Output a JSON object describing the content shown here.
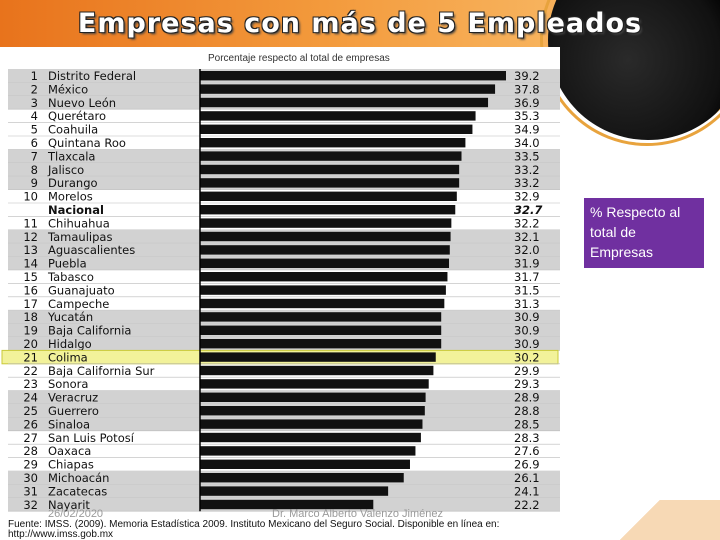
{
  "slide": {
    "title": "Empresas con más de 5  Empleados",
    "callout": "% Respecto al total de Empresas",
    "footer_date": "26/02/2020",
    "footer_author": "Dr. Marco Alberto Valenzo Jiménez",
    "source": "Fuente: IMSS. (2009). Memoria Estadística 2009. Instituto Mexicano del Seguro Social. Disponible en línea en: http://www.imss.gob.mx"
  },
  "colors": {
    "header": "#f39a3c",
    "bar": "#111111",
    "row_shade": "#d2d2d2",
    "highlight": "#f2f29a",
    "callout": "#7030a0"
  },
  "chart_data": {
    "type": "bar",
    "orientation": "horizontal",
    "title": "Porcentaje respecto al total de empresas",
    "xlim": [
      0,
      39.2
    ],
    "rows": [
      {
        "rank": "1",
        "name": "Distrito Federal",
        "value": 39.2
      },
      {
        "rank": "2",
        "name": "México",
        "value": 37.8
      },
      {
        "rank": "3",
        "name": "Nuevo León",
        "value": 36.9
      },
      {
        "rank": "4",
        "name": "Querétaro",
        "value": 35.3
      },
      {
        "rank": "5",
        "name": "Coahuila",
        "value": 34.9
      },
      {
        "rank": "6",
        "name": "Quintana Roo",
        "value": 34.0
      },
      {
        "rank": "7",
        "name": "Tlaxcala",
        "value": 33.5
      },
      {
        "rank": "8",
        "name": "Jalisco",
        "value": 33.2
      },
      {
        "rank": "9",
        "name": "Durango",
        "value": 33.2
      },
      {
        "rank": "10",
        "name": "Morelos",
        "value": 32.9
      },
      {
        "rank": "",
        "name": "Nacional",
        "value": 32.7,
        "national": true
      },
      {
        "rank": "11",
        "name": "Chihuahua",
        "value": 32.2
      },
      {
        "rank": "12",
        "name": "Tamaulipas",
        "value": 32.1
      },
      {
        "rank": "13",
        "name": "Aguascalientes",
        "value": 32.0
      },
      {
        "rank": "14",
        "name": "Puebla",
        "value": 31.9
      },
      {
        "rank": "15",
        "name": "Tabasco",
        "value": 31.7
      },
      {
        "rank": "16",
        "name": "Guanajuato",
        "value": 31.5
      },
      {
        "rank": "17",
        "name": "Campeche",
        "value": 31.3
      },
      {
        "rank": "18",
        "name": "Yucatán",
        "value": 30.9
      },
      {
        "rank": "19",
        "name": "Baja California",
        "value": 30.9
      },
      {
        "rank": "20",
        "name": "Hidalgo",
        "value": 30.9
      },
      {
        "rank": "21",
        "name": "Colima",
        "value": 30.2,
        "highlight": true
      },
      {
        "rank": "22",
        "name": "Baja California Sur",
        "value": 29.9
      },
      {
        "rank": "23",
        "name": "Sonora",
        "value": 29.3
      },
      {
        "rank": "24",
        "name": "Veracruz",
        "value": 28.9
      },
      {
        "rank": "25",
        "name": "Guerrero",
        "value": 28.8
      },
      {
        "rank": "26",
        "name": "Sinaloa",
        "value": 28.5
      },
      {
        "rank": "27",
        "name": "San Luis Potosí",
        "value": 28.3
      },
      {
        "rank": "28",
        "name": "Oaxaca",
        "value": 27.6
      },
      {
        "rank": "29",
        "name": "Chiapas",
        "value": 26.9
      },
      {
        "rank": "30",
        "name": "Michoacán",
        "value": 26.1
      },
      {
        "rank": "31",
        "name": "Zacatecas",
        "value": 24.1
      },
      {
        "rank": "32",
        "name": "Nayarit",
        "value": 22.2
      }
    ]
  }
}
